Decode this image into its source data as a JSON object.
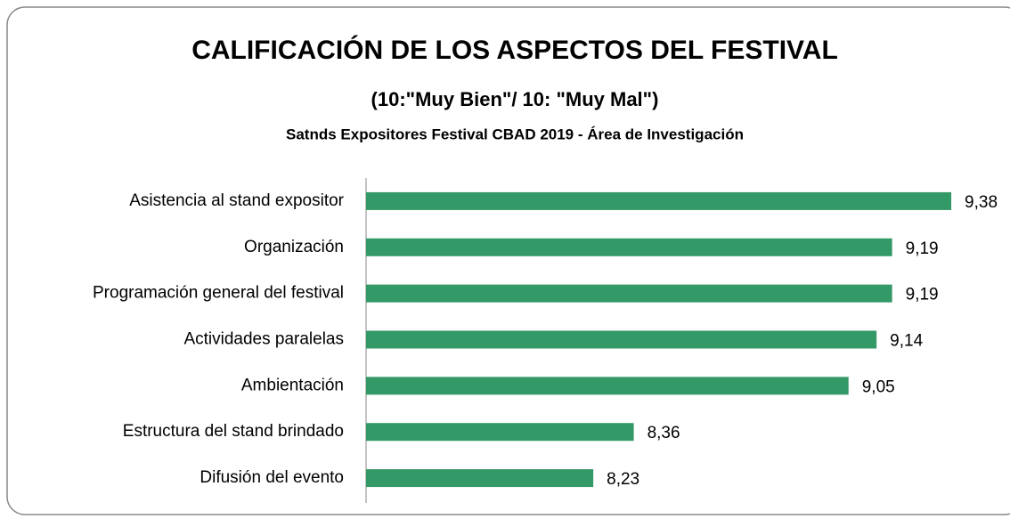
{
  "chart_data": {
    "type": "bar",
    "orientation": "horizontal",
    "title": "CALIFICACIÓN DE LOS ASPECTOS DEL FESTIVAL",
    "subtitle": "(10:\"Muy Bien\"/ 10: \"Muy Mal\")",
    "caption": "Satnds Expositores Festival CBAD 2019  - Área de Investigación",
    "categories": [
      "Asistencia al stand expositor",
      "Organización",
      "Programación general del festival",
      "Actividades paralelas",
      "Ambientación",
      "Estructura del stand brindado",
      "Difusión del evento"
    ],
    "values": [
      9.38,
      9.19,
      9.19,
      9.14,
      9.05,
      8.36,
      8.23
    ],
    "value_labels": [
      "9,38",
      "9,19",
      "9,19",
      "9,14",
      "9,05",
      "8,36",
      "8,23"
    ],
    "color": "#339966",
    "xlim": [
      7.5,
      9.5
    ]
  }
}
